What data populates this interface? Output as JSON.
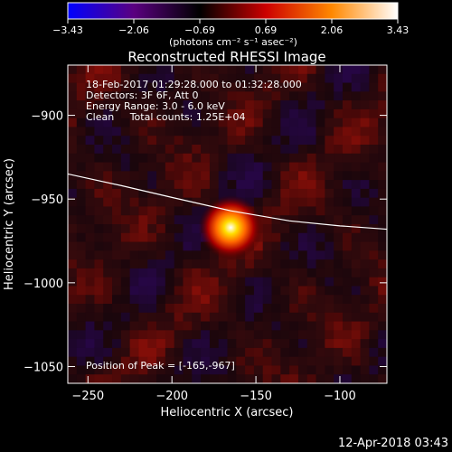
{
  "chart_data": {
    "type": "heatmap",
    "title": "Reconstructed RHESSI Image",
    "xlabel": "Heliocentric X (arcsec)",
    "ylabel": "Heliocentric Y (arcsec)",
    "xlim": [
      -262,
      -72
    ],
    "ylim": [
      -1060,
      -870
    ],
    "x_ticks": [
      -250,
      -200,
      -150,
      -100
    ],
    "x_tick_labels": [
      "−250",
      "−200",
      "−150",
      "−100"
    ],
    "y_ticks": [
      -900,
      -950,
      -1000,
      -1050
    ],
    "y_tick_labels": [
      "−900",
      "−950",
      "−1000",
      "−1050"
    ],
    "colorbar": {
      "range": [
        -3.43,
        3.43
      ],
      "tick_labels": [
        "−3.43",
        "−2.06",
        "−0.69",
        "0.69",
        "2.06",
        "3.43"
      ],
      "unit_label": "(photons cm⁻² s⁻¹ asec⁻²)",
      "colors": [
        "#0000ff",
        "#5a0080",
        "#000000",
        "#cc0000",
        "#ff8800",
        "#ffffff"
      ]
    },
    "annotations": [
      "18-Feb-2017 01:29:28.000 to 01:32:28.000",
      "Detectors: 3F 6F, Att 0",
      "Energy Range: 3.0 - 6.0 keV",
      "Clean     Total counts: 1.25E+04"
    ],
    "peak": {
      "label": "Position of Peak = [-165,-967]",
      "x": -165,
      "y": -967,
      "value": 3.43
    },
    "limb_curve": [
      [
        -262,
        -935
      ],
      [
        -230,
        -942
      ],
      [
        -200,
        -949
      ],
      [
        -165,
        -957
      ],
      [
        -130,
        -963
      ],
      [
        -100,
        -966
      ],
      [
        -72,
        -968
      ]
    ],
    "limb_color": "#ffffff"
  },
  "footer": {
    "timestamp": "12-Apr-2018 03:43"
  }
}
